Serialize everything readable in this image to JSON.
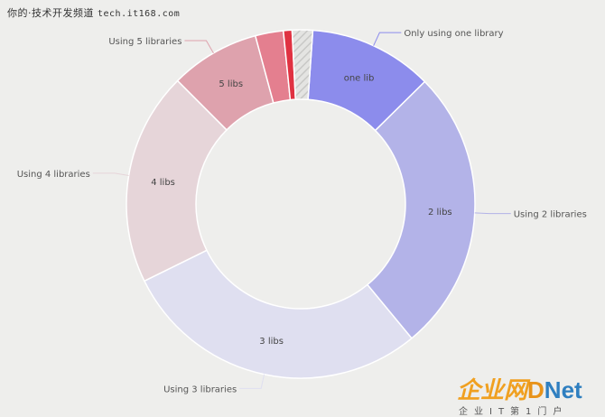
{
  "watermark": {
    "site_label": "你的·技术开发频道",
    "site_url": "tech.it168.com"
  },
  "logo": {
    "cn": "企业网",
    "d": "D",
    "net": "Net",
    "tagline": "企业IT第1门户"
  },
  "chart_data": {
    "type": "pie",
    "donut": true,
    "slices": [
      {
        "label": "one lib",
        "value": 11.5,
        "legend": "Only using one library",
        "color": "#8c8cec"
      },
      {
        "label": "2 libs",
        "value": 26.4,
        "legend": "Using 2 libraries",
        "color": "#b3b3e8"
      },
      {
        "label": "3 libs",
        "value": 28.7,
        "legend": "Using 3 libraries",
        "color": "#dfdff0"
      },
      {
        "label": "4 libs",
        "value": 19.8,
        "legend": "Using 4 libraries",
        "color": "#e6d5d9"
      },
      {
        "label": "5 libs",
        "value": 8.3,
        "legend": "Using 5 libraries",
        "color": "#dea2ad"
      },
      {
        "label": "",
        "value": 2.6,
        "legend": "",
        "color": "#e47f8f"
      },
      {
        "label": "",
        "value": 0.8,
        "legend": "",
        "color": "#e03242"
      },
      {
        "label": "",
        "value": 1.9,
        "legend": "",
        "color": "hatch"
      }
    ]
  }
}
